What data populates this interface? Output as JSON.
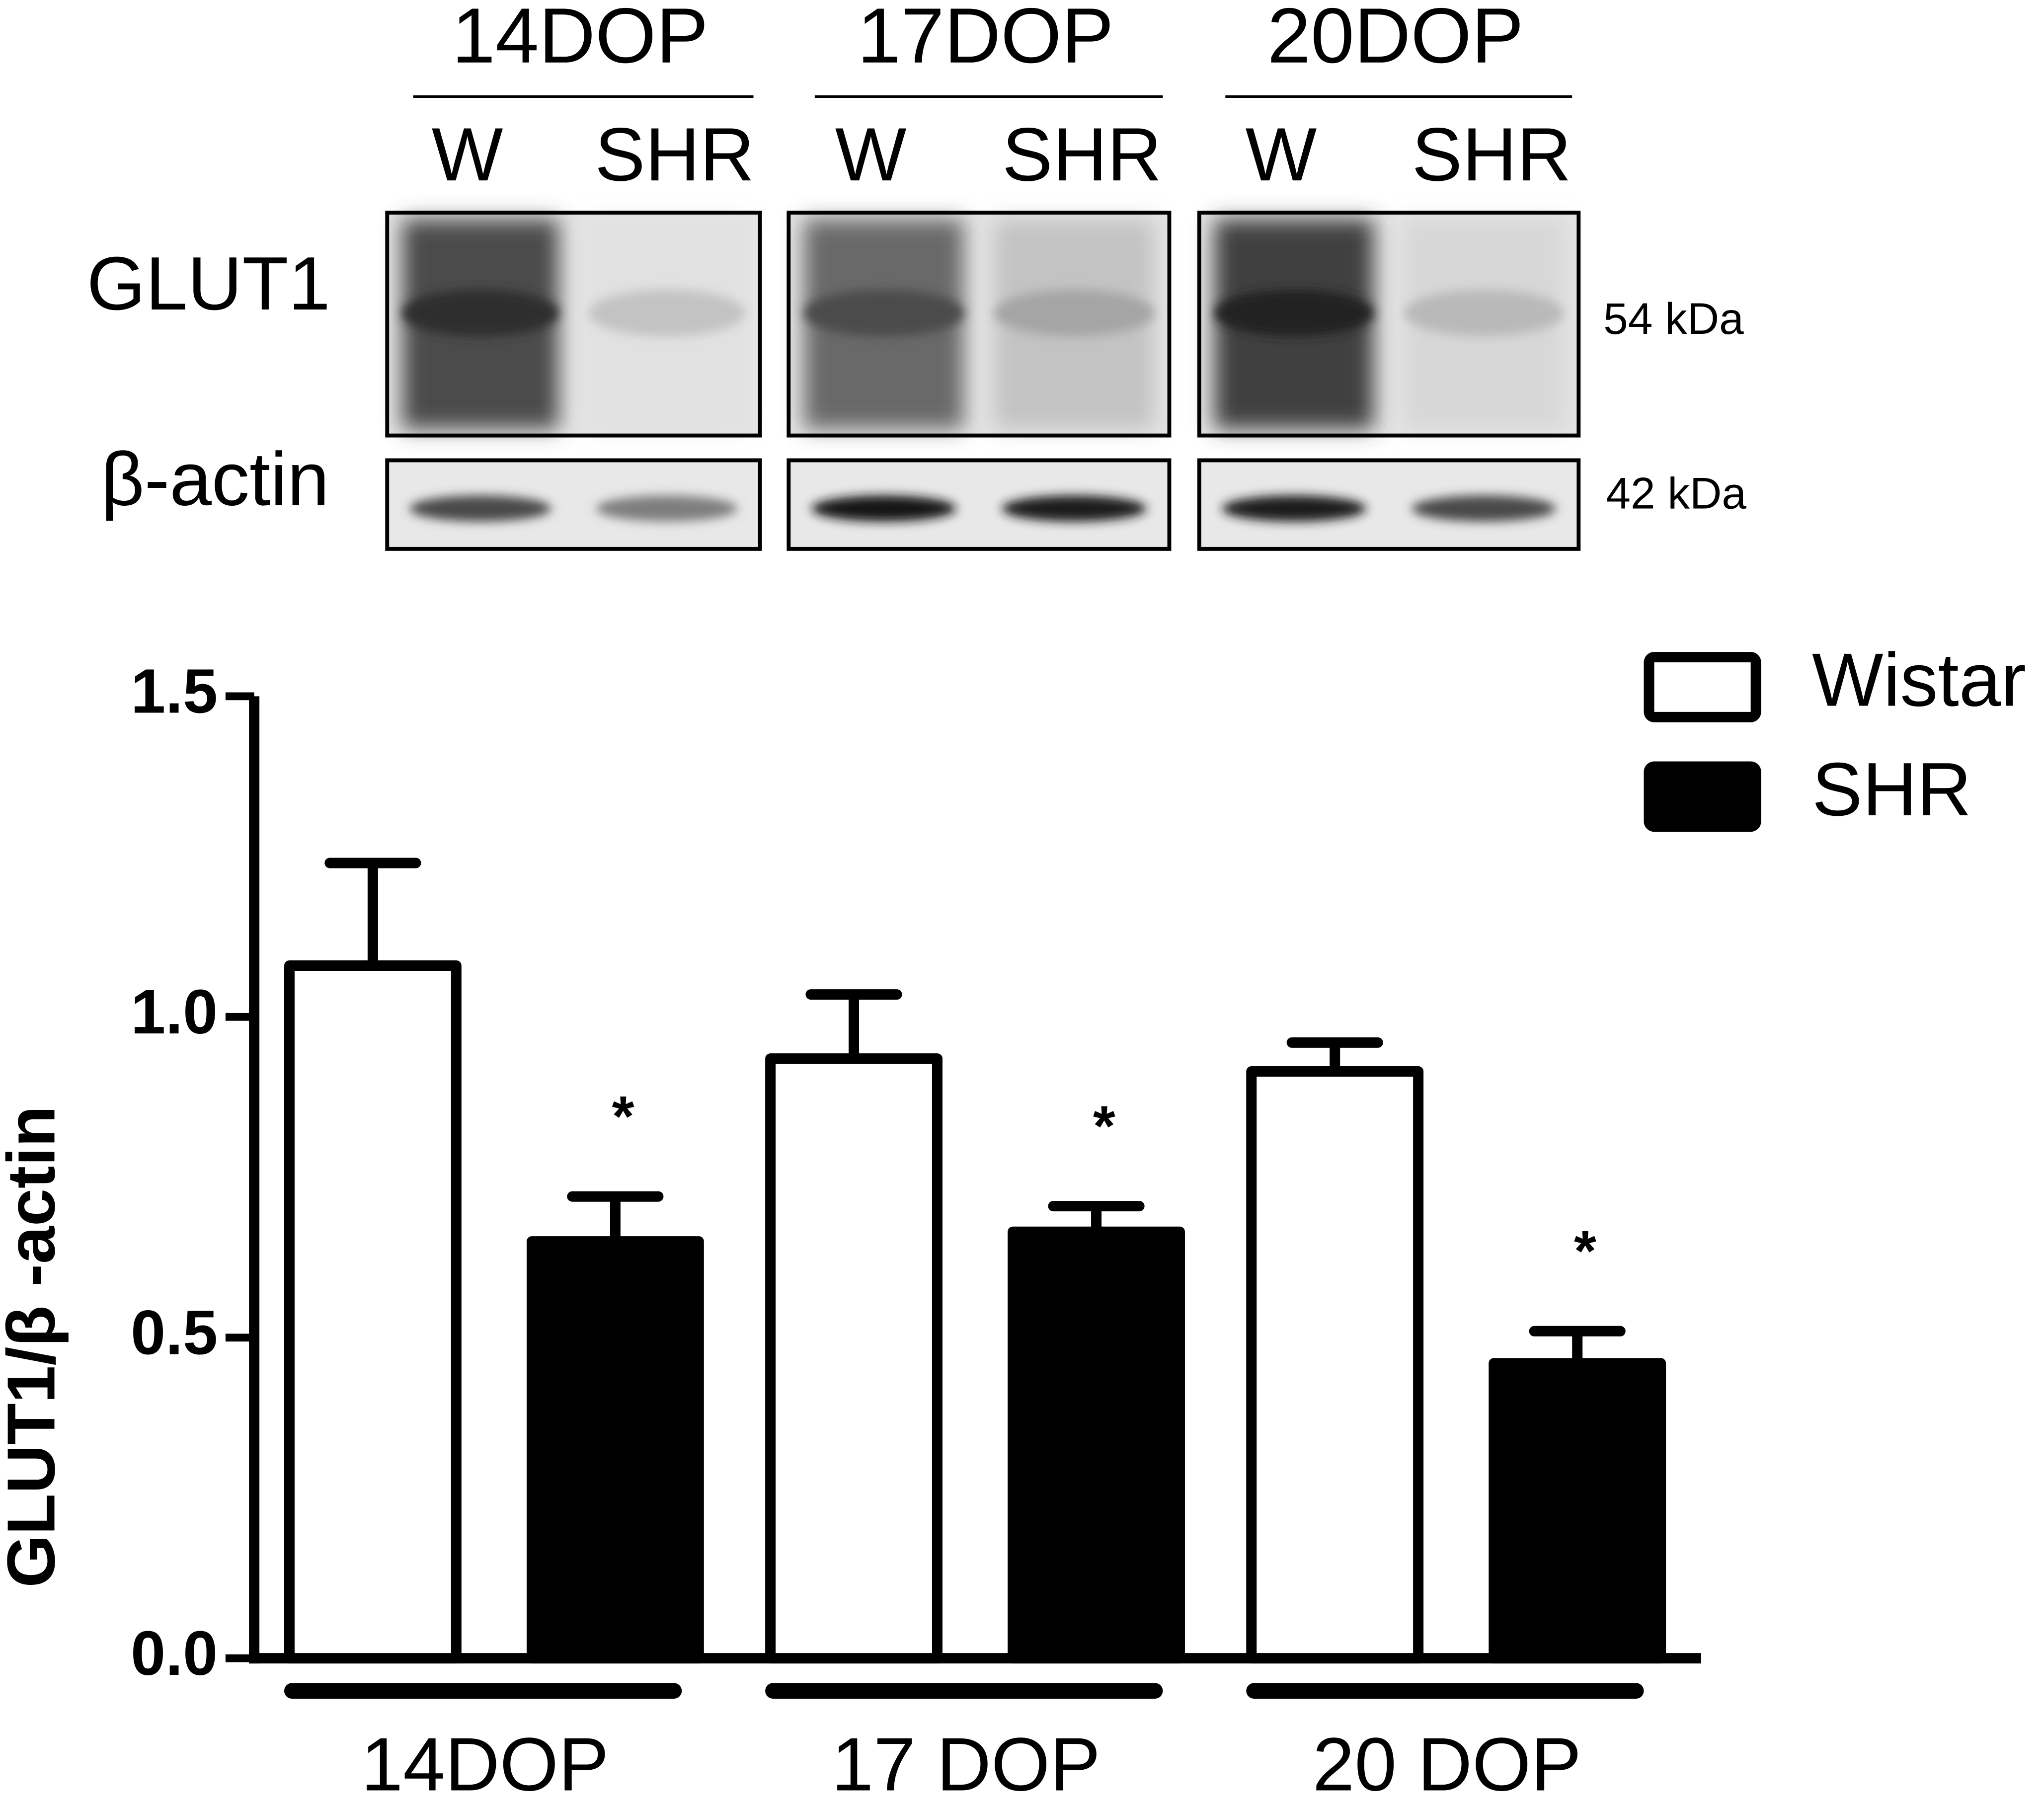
{
  "blot": {
    "groups": [
      {
        "label": "14DOP",
        "lanes": [
          "W",
          "SHR"
        ]
      },
      {
        "label": "17DOP",
        "lanes": [
          "W",
          "SHR"
        ]
      },
      {
        "label": "20DOP",
        "lanes": [
          "W",
          "SHR"
        ]
      }
    ],
    "rows": [
      "GLUT1",
      "β-actin"
    ],
    "sizes": [
      "54 kDa",
      "42 kDa"
    ]
  },
  "chart_data": {
    "type": "bar",
    "y_label": "GLUT1/β -actin",
    "categories": [
      "14DOP",
      "17 DOP",
      "20 DOP"
    ],
    "series": [
      {
        "name": "Wistar",
        "color": "#ffffff",
        "values": [
          1.08,
          0.935,
          0.915
        ],
        "errors": [
          0.16,
          0.1,
          0.045
        ]
      },
      {
        "name": "SHR",
        "color": "#000000",
        "values": [
          0.65,
          0.665,
          0.46
        ],
        "errors": [
          0.07,
          0.04,
          0.05
        ]
      }
    ],
    "significance": [
      "*",
      "*",
      "*"
    ],
    "ylim": [
      0,
      1.5
    ],
    "yticks": [
      {
        "value": 0,
        "label": "0.0"
      },
      0.5,
      {
        "value": 1,
        "label": "1.0"
      },
      1.5
    ],
    "legend": "top-right"
  }
}
